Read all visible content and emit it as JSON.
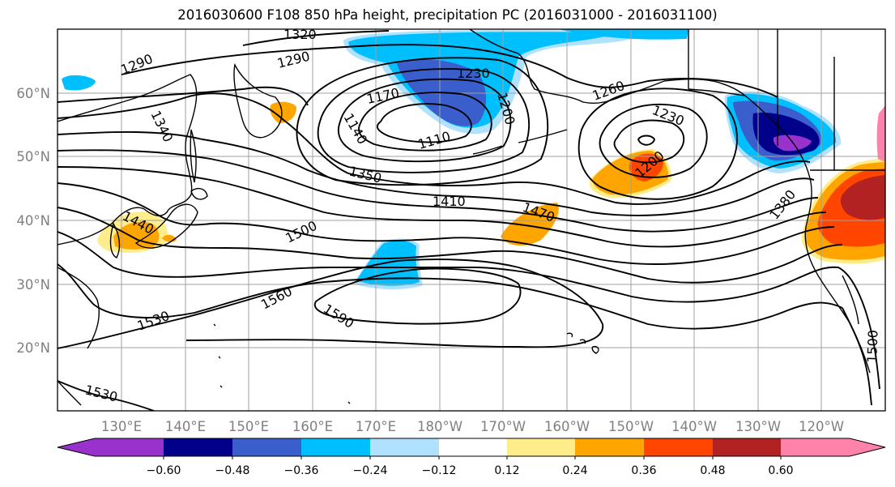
{
  "title": "2016030600 F108 850 hPa height, precipitation PC (2016031000 - 2016031100)",
  "map": {
    "projection": "cylindrical",
    "lon_range": [
      122,
      250
    ],
    "lat_range": [
      10,
      70
    ],
    "lat_labels": [
      "20°N",
      "30°N",
      "40°N",
      "50°N",
      "60°N"
    ],
    "lon_labels": [
      "130°E",
      "140°E",
      "150°E",
      "160°E",
      "170°E",
      "180°W",
      "170°W",
      "160°W",
      "150°W",
      "140°W",
      "130°W",
      "120°W"
    ],
    "grid_color": "#a0a0a0",
    "contour_color": "#000000",
    "contour_labels": [
      "1320",
      "1290",
      "1290",
      "1230",
      "1170",
      "1140",
      "1110",
      "1200",
      "1260",
      "1230",
      "1200",
      "1340",
      "1350",
      "1410",
      "1440",
      "1470",
      "1500",
      "1380",
      "1560",
      "1590",
      "1530",
      "1530",
      "1500"
    ]
  },
  "colorbar": {
    "colors": [
      "#9932cc",
      "#00008b",
      "#3a5fcd",
      "#00bfff",
      "#b0e2ff",
      "#ffffff",
      "#ffec8b",
      "#ffa500",
      "#ff4500",
      "#b22222",
      "#ff82ab"
    ],
    "ticks": [
      "−0.60",
      "−0.48",
      "−0.36",
      "−0.24",
      "−0.12",
      "0.12",
      "0.24",
      "0.36",
      "0.48",
      "0.60"
    ]
  }
}
